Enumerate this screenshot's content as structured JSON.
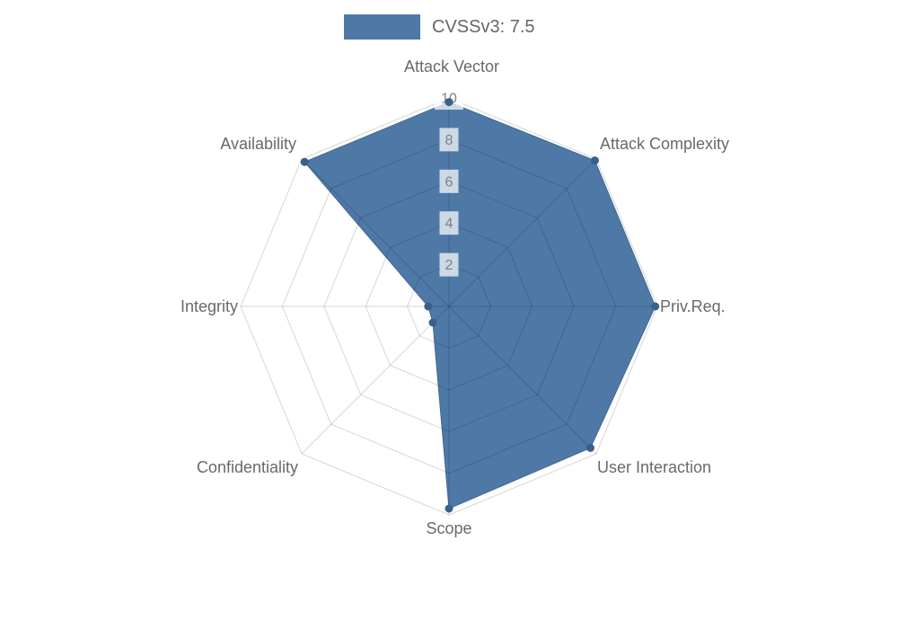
{
  "legend": {
    "label": "CVSSv3: 7.5",
    "swatch_color": "#4e79a7"
  },
  "chart_data": {
    "type": "radar",
    "title": "CVSSv3: 7.5",
    "axes": [
      "Attack Vector",
      "Attack Complexity",
      "Priv.Req.",
      "User Interaction",
      "Scope",
      "Confidentiality",
      "Integrity",
      "Availability"
    ],
    "series": [
      {
        "name": "CVSSv3: 7.5",
        "values": [
          9.8,
          9.9,
          9.9,
          9.6,
          9.7,
          1.1,
          1.0,
          9.8
        ]
      }
    ],
    "scale": {
      "min": 0,
      "max": 10,
      "ticks": [
        2,
        4,
        6,
        8,
        10
      ]
    },
    "grid": "octagonal, rings at each tick, spokes per axis, drawn over the fill",
    "legend_position": "top",
    "colors": {
      "fill": "#4e79a7",
      "stroke": "#41688f",
      "marker": "#3a5f8a",
      "grid_line": "rgba(0,0,0,0.16)",
      "axis_label": "#696969",
      "tick_label": "#808080",
      "tick_backdrop": "rgba(255,255,255,0.72)",
      "background": "#ffffff"
    }
  }
}
